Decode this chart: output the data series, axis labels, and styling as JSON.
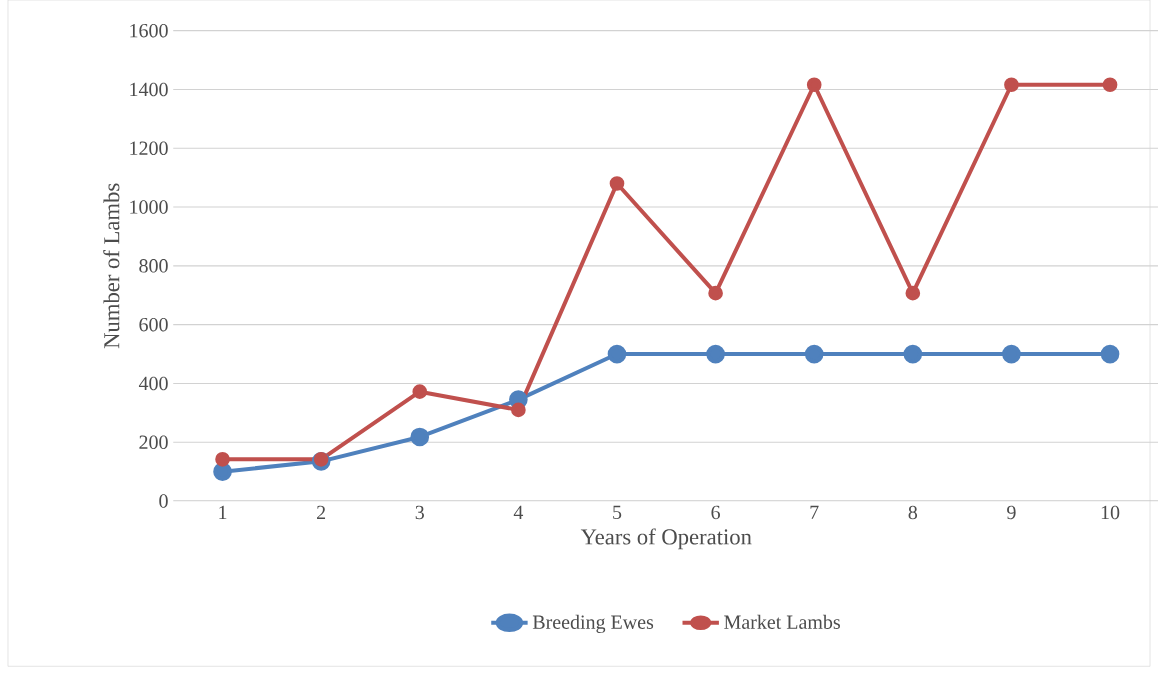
{
  "chart_data": {
    "type": "line",
    "xlabel": "Years of Operation",
    "ylabel": "Number of Lambs",
    "categories": [
      "1",
      "2",
      "3",
      "4",
      "5",
      "6",
      "7",
      "8",
      "9",
      "10"
    ],
    "series": [
      {
        "name": "Breeding Ewes",
        "color": "#4f81bd",
        "values": [
          100,
          135,
          218,
          345,
          500,
          500,
          500,
          500,
          500,
          500
        ]
      },
      {
        "name": "Market Lambs",
        "color": "#c0504d",
        "values": [
          142,
          142,
          372,
          310,
          1080,
          707,
          1416,
          707,
          1416,
          1416
        ]
      }
    ],
    "ylim": [
      0,
      1600
    ],
    "yticks": [
      0,
      200,
      400,
      600,
      800,
      1000,
      1200,
      1400,
      1600
    ],
    "grid": "y",
    "legend": "bottom",
    "marker": "circle",
    "line_style": "solid"
  }
}
